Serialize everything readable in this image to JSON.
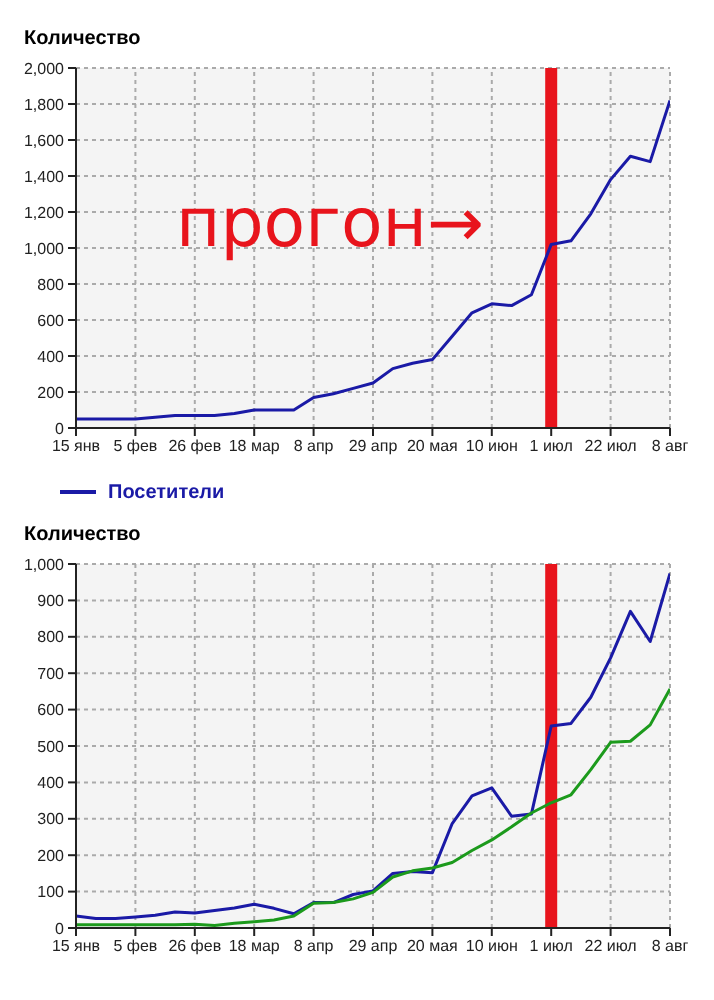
{
  "chart_data": [
    {
      "type": "line",
      "ylabel": "Количество",
      "categories": [
        "15 янв",
        null,
        null,
        "5 фев",
        null,
        null,
        "26 фев",
        null,
        null,
        "18 мар",
        null,
        null,
        "8 апр",
        null,
        null,
        "29 апр",
        null,
        null,
        "20 мая",
        null,
        null,
        "10 июн",
        null,
        null,
        "1 июл",
        null,
        null,
        "22 июл",
        null,
        null,
        "8 авг"
      ],
      "series": [
        {
          "name": "Посетители",
          "color": "#1a1aa6",
          "values": [
            50,
            50,
            50,
            50,
            60,
            70,
            70,
            70,
            80,
            100,
            100,
            100,
            170,
            190,
            220,
            250,
            330,
            360,
            380,
            510,
            640,
            690,
            680,
            740,
            1020,
            1040,
            1190,
            1380,
            1510,
            1480,
            1820
          ]
        }
      ],
      "ylim": [
        0,
        2000
      ],
      "yticks": [
        0,
        200,
        400,
        600,
        800,
        {
          "value": 1000,
          "label": "1,000"
        },
        {
          "value": 1200,
          "label": "1,200"
        },
        {
          "value": 1400,
          "label": "1,400"
        },
        {
          "value": 1600,
          "label": "1,600"
        },
        {
          "value": 1800,
          "label": "1,800"
        },
        {
          "value": 2000,
          "label": "2,000"
        }
      ],
      "grid": true,
      "legend": "bottom",
      "marker": "none",
      "line_style": "solid",
      "ref_lines": [
        {
          "axis": "x",
          "value": "1 июл",
          "color": "#e8141c"
        }
      ],
      "annotations": [
        "прогон→"
      ]
    },
    {
      "type": "line",
      "ylabel": "Количество",
      "categories": [
        "15 янв",
        null,
        null,
        "5 фев",
        null,
        null,
        "26 фев",
        null,
        null,
        "18 мар",
        null,
        null,
        "8 апр",
        null,
        null,
        "29 апр",
        null,
        null,
        "20 мая",
        null,
        null,
        "10 июн",
        null,
        null,
        "1 июл",
        null,
        null,
        "22 июл",
        null,
        null,
        "8 авг"
      ],
      "series": [
        {
          "color": "#1a1aa6",
          "values": [
            33,
            26,
            26,
            30,
            35,
            44,
            41,
            48,
            55,
            65,
            54,
            39,
            70,
            70,
            92,
            102,
            150,
            155,
            152,
            287,
            363,
            385,
            307,
            313,
            555,
            562,
            634,
            742,
            870,
            787,
            974
          ]
        },
        {
          "color": "#1c9a1c",
          "values": [
            9,
            9,
            9,
            9,
            9,
            9,
            10,
            7,
            13,
            17,
            22,
            33,
            68,
            70,
            80,
            98,
            140,
            157,
            165,
            180,
            213,
            242,
            278,
            316,
            344,
            366,
            435,
            510,
            513,
            558,
            657
          ]
        }
      ],
      "ylim": [
        0,
        1000
      ],
      "yticks": [
        0,
        100,
        200,
        300,
        400,
        500,
        600,
        700,
        800,
        900,
        {
          "value": 1000,
          "label": "1,000"
        }
      ],
      "grid": true,
      "marker": "none",
      "line_style": "solid",
      "ref_lines": [
        {
          "axis": "x",
          "value": "1 июл",
          "color": "#e8141c"
        }
      ]
    }
  ]
}
